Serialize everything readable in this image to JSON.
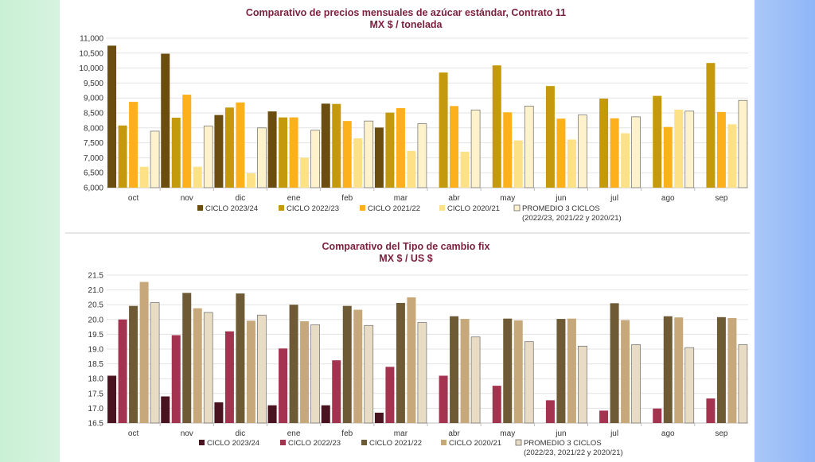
{
  "chart_data": [
    {
      "type": "bar",
      "title": "Comparativo de precios mensuales de azúcar estándar, Contrato 11",
      "subtitle": "MX $ / tonelada",
      "categories": [
        "oct",
        "nov",
        "dic",
        "ene",
        "feb",
        "mar",
        "abr",
        "may",
        "jun",
        "jul",
        "ago",
        "sep"
      ],
      "ylim": [
        6000,
        11000
      ],
      "yticks": [
        "6,000",
        "6,500",
        "7,000",
        "7,500",
        "8,000",
        "8,500",
        "9,000",
        "9,500",
        "10,000",
        "10,500",
        "11,000"
      ],
      "ytick_values": [
        6000,
        6500,
        7000,
        7500,
        8000,
        8500,
        9000,
        9500,
        10000,
        10500,
        11000
      ],
      "grid": true,
      "legend_position": "bottom",
      "series": [
        {
          "name": "CICLO 2023/24",
          "color": "#6b4e0f",
          "values": [
            10750,
            10480,
            8430,
            8550,
            8810,
            8010,
            null,
            null,
            null,
            null,
            null,
            null
          ]
        },
        {
          "name": "CICLO 2022/23",
          "color": "#c49a0c",
          "values": [
            8080,
            8340,
            8680,
            8350,
            8800,
            8510,
            9850,
            10090,
            9400,
            8980,
            9070,
            10170
          ]
        },
        {
          "name": "CICLO 2021/22",
          "color": "#fcb11c",
          "values": [
            8870,
            9110,
            8850,
            8350,
            8230,
            8660,
            8730,
            8520,
            8310,
            8320,
            8030,
            8530
          ]
        },
        {
          "name": "CICLO 2020/21",
          "color": "#fde187",
          "values": [
            6700,
            6700,
            6480,
            7000,
            7650,
            7230,
            7200,
            7580,
            7610,
            7820,
            8610,
            8120
          ]
        },
        {
          "name": "PROMEDIO 3 CICLOS",
          "color": "#fdf2cc",
          "values": [
            7890,
            8060,
            8000,
            7920,
            8230,
            8140,
            8600,
            8730,
            8430,
            8370,
            8560,
            8920
          ]
        }
      ],
      "legend_entries": [
        "CICLO 2023/24",
        "CICLO 2022/23",
        "CICLO 2021/22",
        "CICLO 2020/21",
        "PROMEDIO 3 CICLOS"
      ],
      "legend_note": "(2022/23, 2021/22 y 2020/21)"
    },
    {
      "type": "bar",
      "title": "Comparativo del Tipo de cambio fix",
      "subtitle": "MX $ / US $",
      "categories": [
        "oct",
        "nov",
        "dic",
        "ene",
        "feb",
        "mar",
        "abr",
        "may",
        "jun",
        "jul",
        "ago",
        "sep"
      ],
      "ylim": [
        16.5,
        21.5
      ],
      "yticks": [
        "16.5",
        "17.0",
        "17.5",
        "18.0",
        "18.5",
        "19.0",
        "19.5",
        "20.0",
        "20.5",
        "21.0",
        "21.5"
      ],
      "ytick_values": [
        16.5,
        17.0,
        17.5,
        18.0,
        18.5,
        19.0,
        19.5,
        20.0,
        20.5,
        21.0,
        21.5
      ],
      "grid": true,
      "legend_position": "bottom",
      "series": [
        {
          "name": "CICLO 2023/24",
          "color": "#4a1320",
          "values": [
            18.1,
            17.4,
            17.2,
            17.1,
            17.1,
            16.85,
            null,
            null,
            null,
            null,
            null,
            null
          ]
        },
        {
          "name": "CICLO 2022/23",
          "color": "#a3334f",
          "values": [
            20.0,
            19.47,
            19.6,
            19.02,
            18.62,
            18.4,
            18.1,
            17.76,
            17.27,
            16.92,
            16.99,
            17.33
          ]
        },
        {
          "name": "CICLO 2021/22",
          "color": "#6e5b36",
          "values": [
            20.46,
            20.9,
            20.88,
            20.5,
            20.46,
            20.56,
            20.11,
            20.03,
            20.02,
            20.55,
            20.11,
            20.08
          ]
        },
        {
          "name": "CICLO 2020/21",
          "color": "#c6a87b",
          "values": [
            21.27,
            20.38,
            19.96,
            19.94,
            20.33,
            20.75,
            20.02,
            19.97,
            20.03,
            19.98,
            20.07,
            20.05
          ]
        },
        {
          "name": "PROMEDIO 3 CICLOS",
          "color": "#e9dcc4",
          "values": [
            20.57,
            20.24,
            20.15,
            19.82,
            19.8,
            19.9,
            19.41,
            19.25,
            19.1,
            19.15,
            19.05,
            19.15
          ]
        }
      ],
      "legend_entries": [
        "CICLO 2023/24",
        "CICLO 2022/23",
        "CICLO 2021/22",
        "CICLO 2020/21",
        "PROMEDIO 3 CICLOS"
      ],
      "legend_note": "(2022/23, 2021/22 y 2020/21)"
    }
  ]
}
